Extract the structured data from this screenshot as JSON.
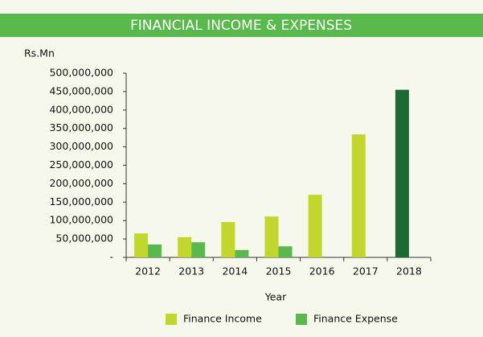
{
  "chart_data": {
    "type": "bar",
    "title": "FINANCIAL INCOME & EXPENSES",
    "y_label": "Rs.Mn",
    "x_label": "Year",
    "categories": [
      "2012",
      "2013",
      "2014",
      "2015",
      "2016",
      "2017",
      "2018"
    ],
    "series": [
      {
        "name": "Finance Income",
        "color": "#c3d62e",
        "values": [
          65000000,
          55000000,
          96000000,
          111000000,
          170000000,
          334000000,
          455000000
        ],
        "colors": [
          "#c3d62e",
          "#c3d62e",
          "#c3d62e",
          "#c3d62e",
          "#c3d62e",
          "#c3d62e",
          "#1d6a34"
        ]
      },
      {
        "name": "Finance Expense",
        "color": "#5ab94c",
        "values": [
          35000000,
          41000000,
          20000000,
          30000000,
          0,
          0,
          0
        ]
      }
    ],
    "ylim": [
      0,
      500000000
    ],
    "yticks": [
      {
        "value": 0,
        "label": "-"
      },
      {
        "value": 50000000,
        "label": "50,000,000"
      },
      {
        "value": 100000000,
        "label": "100,000,000"
      },
      {
        "value": 150000000,
        "label": "150,000,000"
      },
      {
        "value": 200000000,
        "label": "200,000,000"
      },
      {
        "value": 250000000,
        "label": "250,000,000"
      },
      {
        "value": 300000000,
        "label": "300,000,000"
      },
      {
        "value": 350000000,
        "label": "350,000,000"
      },
      {
        "value": 400000000,
        "label": "400,000,000"
      },
      {
        "value": 450000000,
        "label": "450,000,000"
      },
      {
        "value": 500000000,
        "label": "500,000,000"
      }
    ],
    "header_color": "#5ab94c",
    "legend": "bottom"
  }
}
